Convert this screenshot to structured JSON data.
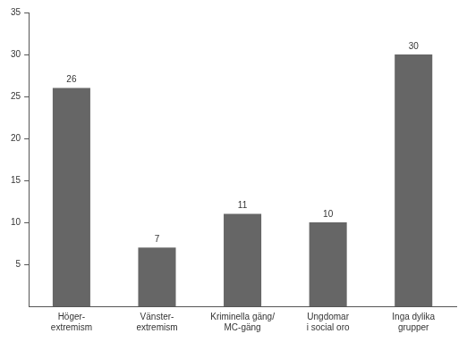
{
  "chart_data": {
    "type": "bar",
    "categories": [
      "Höger-\nextremism",
      "Vänster-\nextremism",
      "Kriminella gäng/\nMC-gäng",
      "Ungdomar\ni social oro",
      "Inga dylika\ngrupper"
    ],
    "values": [
      26,
      7,
      11,
      10,
      30
    ],
    "color": "#666666",
    "ylim": [
      0,
      35
    ],
    "yticks": [
      5,
      10,
      15,
      20,
      25,
      30,
      35
    ],
    "grid": false,
    "data_labels": true
  }
}
